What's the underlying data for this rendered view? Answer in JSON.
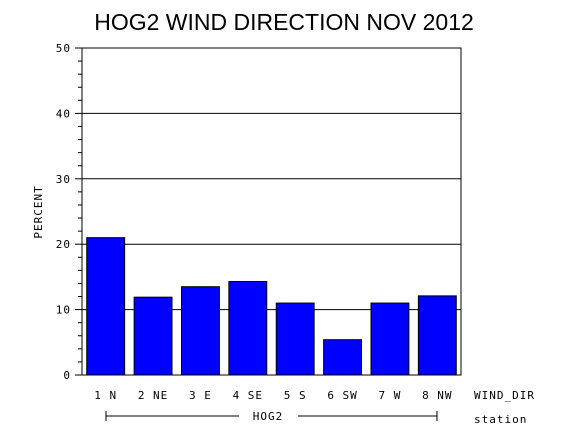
{
  "chart_data": {
    "type": "bar",
    "title": "HOG2 WIND DIRECTION NOV 2012",
    "ylabel": "PERCENT",
    "categories": [
      "1 N",
      "2 NE",
      "3 E",
      "4 SE",
      "5 S",
      "6 SW",
      "7 W",
      "8 NW"
    ],
    "values": [
      21.0,
      11.9,
      13.5,
      14.3,
      11.0,
      5.4,
      11.0,
      12.1
    ],
    "ylim": [
      0,
      50
    ],
    "yticks": [
      "0",
      "10",
      "20",
      "30",
      "40",
      "50"
    ],
    "x_category_label": "WIND_DIR",
    "group_label": "HOG2",
    "group_axis_label": "station",
    "grid": true,
    "colors": {
      "bar": "#0000ff",
      "bar_outline": "#000000",
      "grid": "#000000"
    }
  }
}
